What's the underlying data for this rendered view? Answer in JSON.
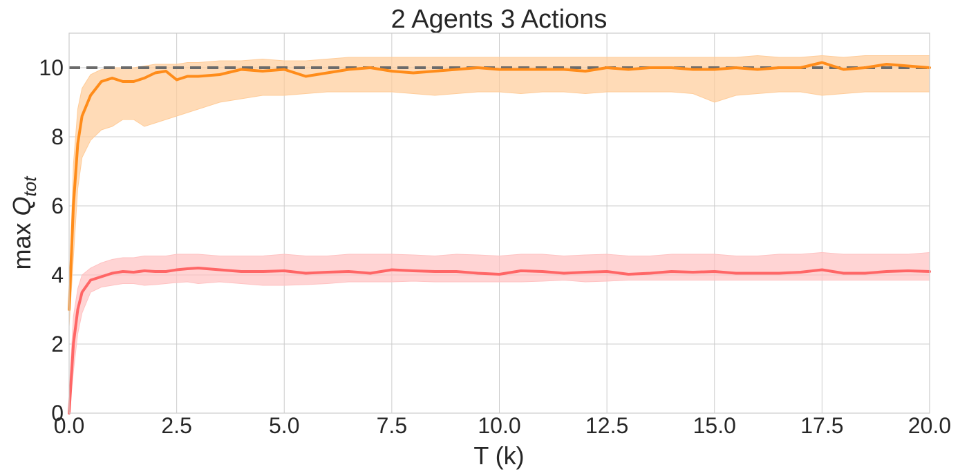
{
  "chart_data": {
    "type": "line",
    "title": "2 Agents 3 Actions",
    "xlabel": "T (k)",
    "ylabel": {
      "prefix": "max ",
      "symbol": "Q",
      "subscript": "tot"
    },
    "xlim": [
      0,
      20
    ],
    "ylim": [
      0,
      11
    ],
    "xticks": [
      0,
      2.5,
      5,
      7.5,
      10,
      12.5,
      15,
      17.5,
      20
    ],
    "xtick_labels": [
      "0.0",
      "2.5",
      "5.0",
      "7.5",
      "10.0",
      "12.5",
      "15.0",
      "17.5",
      "20.0"
    ],
    "yticks": [
      0,
      2,
      4,
      6,
      8,
      10
    ],
    "ytick_labels": [
      "0",
      "2",
      "4",
      "6",
      "8",
      "10"
    ],
    "grid": true,
    "reference_line": {
      "y": 10,
      "style": "dashed",
      "color": "#6b6b6b"
    },
    "series": [
      {
        "color": "#ff8c1a",
        "band_color": "#ffcc99",
        "x": [
          0,
          0.1,
          0.2,
          0.3,
          0.5,
          0.75,
          1.0,
          1.25,
          1.5,
          1.75,
          2.0,
          2.25,
          2.5,
          2.75,
          3.0,
          3.5,
          4.0,
          4.5,
          5.0,
          5.5,
          6.0,
          6.5,
          7.0,
          7.5,
          8.0,
          8.5,
          9.0,
          9.5,
          10.0,
          10.5,
          11.0,
          11.5,
          12.0,
          12.5,
          13.0,
          13.5,
          14.0,
          14.5,
          15.0,
          15.5,
          16.0,
          16.5,
          17.0,
          17.5,
          18.0,
          18.5,
          19.0,
          19.5,
          20.0
        ],
        "mean": [
          3.0,
          6.0,
          7.8,
          8.6,
          9.2,
          9.6,
          9.7,
          9.6,
          9.6,
          9.7,
          9.85,
          9.9,
          9.65,
          9.75,
          9.75,
          9.8,
          9.95,
          9.9,
          9.95,
          9.75,
          9.85,
          9.95,
          10.0,
          9.9,
          9.85,
          9.9,
          9.95,
          10.0,
          9.95,
          9.95,
          9.95,
          9.95,
          9.9,
          10.0,
          9.95,
          10.0,
          10.0,
          9.95,
          9.95,
          10.0,
          9.95,
          10.0,
          10.0,
          10.15,
          9.95,
          10.0,
          10.1,
          10.05,
          10.0
        ],
        "lower": [
          2.5,
          4.5,
          6.5,
          7.4,
          7.9,
          8.2,
          8.3,
          8.5,
          8.5,
          8.3,
          8.4,
          8.5,
          8.6,
          8.7,
          8.8,
          9.0,
          9.1,
          9.2,
          9.2,
          9.25,
          9.3,
          9.3,
          9.3,
          9.3,
          9.25,
          9.2,
          9.25,
          9.3,
          9.3,
          9.25,
          9.3,
          9.3,
          9.25,
          9.3,
          9.3,
          9.3,
          9.3,
          9.25,
          9.0,
          9.2,
          9.25,
          9.3,
          9.3,
          9.2,
          9.25,
          9.3,
          9.3,
          9.3,
          9.3
        ],
        "upper": [
          3.4,
          7.2,
          8.8,
          9.4,
          9.8,
          9.95,
          10.0,
          10.0,
          10.0,
          10.05,
          10.1,
          10.1,
          10.1,
          10.15,
          10.15,
          10.2,
          10.2,
          10.25,
          10.2,
          10.2,
          10.25,
          10.3,
          10.3,
          10.3,
          10.3,
          10.3,
          10.3,
          10.3,
          10.3,
          10.3,
          10.3,
          10.3,
          10.3,
          10.3,
          10.3,
          10.3,
          10.3,
          10.3,
          10.3,
          10.3,
          10.35,
          10.3,
          10.3,
          10.35,
          10.3,
          10.35,
          10.35,
          10.35,
          10.35
        ]
      },
      {
        "color": "#ff6666",
        "band_color": "#ffc2c2",
        "x": [
          0,
          0.1,
          0.2,
          0.3,
          0.5,
          0.75,
          1.0,
          1.25,
          1.5,
          1.75,
          2.0,
          2.25,
          2.5,
          2.75,
          3.0,
          3.5,
          4.0,
          4.5,
          5.0,
          5.5,
          6.0,
          6.5,
          7.0,
          7.5,
          8.0,
          8.5,
          9.0,
          9.5,
          10.0,
          10.5,
          11.0,
          11.5,
          12.0,
          12.5,
          13.0,
          13.5,
          14.0,
          14.5,
          15.0,
          15.5,
          16.0,
          16.5,
          17.0,
          17.5,
          18.0,
          18.5,
          19.0,
          19.5,
          20.0
        ],
        "mean": [
          0.0,
          2.0,
          3.0,
          3.5,
          3.85,
          3.95,
          4.05,
          4.1,
          4.08,
          4.12,
          4.1,
          4.1,
          4.15,
          4.18,
          4.2,
          4.15,
          4.1,
          4.1,
          4.12,
          4.05,
          4.08,
          4.1,
          4.05,
          4.15,
          4.12,
          4.1,
          4.1,
          4.05,
          4.02,
          4.12,
          4.1,
          4.05,
          4.08,
          4.1,
          4.02,
          4.05,
          4.1,
          4.08,
          4.1,
          4.05,
          4.05,
          4.05,
          4.08,
          4.15,
          4.05,
          4.05,
          4.1,
          4.12,
          4.1
        ],
        "lower": [
          0.0,
          1.2,
          2.3,
          2.9,
          3.5,
          3.65,
          3.7,
          3.75,
          3.75,
          3.7,
          3.72,
          3.75,
          3.78,
          3.8,
          3.75,
          3.8,
          3.75,
          3.7,
          3.7,
          3.72,
          3.75,
          3.8,
          3.8,
          3.8,
          3.82,
          3.8,
          3.8,
          3.8,
          3.8,
          3.8,
          3.82,
          3.85,
          3.8,
          3.82,
          3.85,
          3.85,
          3.85,
          3.85,
          3.85,
          3.85,
          3.85,
          3.85,
          3.85,
          3.85,
          3.85,
          3.85,
          3.85,
          3.85,
          3.85
        ],
        "upper": [
          0.6,
          2.8,
          3.6,
          4.0,
          4.2,
          4.35,
          4.45,
          4.5,
          4.5,
          4.55,
          4.55,
          4.55,
          4.6,
          4.6,
          4.6,
          4.55,
          4.55,
          4.55,
          4.6,
          4.55,
          4.55,
          4.6,
          4.6,
          4.6,
          4.58,
          4.55,
          4.6,
          4.58,
          4.55,
          4.6,
          4.6,
          4.55,
          4.58,
          4.6,
          4.55,
          4.55,
          4.6,
          4.6,
          4.6,
          4.55,
          4.55,
          4.6,
          4.6,
          4.65,
          4.6,
          4.6,
          4.6,
          4.6,
          4.65
        ]
      }
    ]
  }
}
